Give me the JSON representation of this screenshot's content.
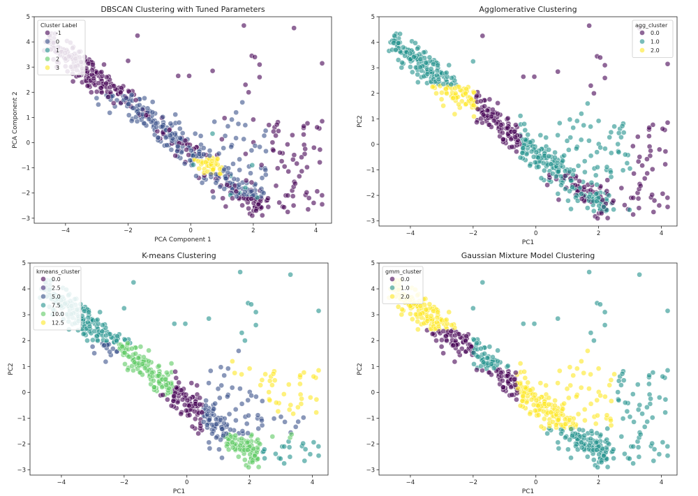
{
  "chart_data": [
    {
      "type": "scatter",
      "title": "DBSCAN Clustering with Tuned Parameters",
      "xlabel": "PCA Component 1",
      "ylabel": "PCA Component 2",
      "xlim": [
        -5,
        4.5
      ],
      "ylim": [
        -3.2,
        5
      ],
      "xticks": [
        -4,
        -2,
        0,
        2,
        4
      ],
      "yticks": [
        -3,
        -2,
        -1,
        0,
        1,
        2,
        3,
        4,
        5
      ],
      "legend": {
        "title": "Cluster Label",
        "position": "upper-left",
        "entries": [
          {
            "label": "-1",
            "color": "#440154"
          },
          {
            "label": "0",
            "color": "#3b528b"
          },
          {
            "label": "1",
            "color": "#21918c"
          },
          {
            "label": "2",
            "color": "#5ec962"
          },
          {
            "label": "3",
            "color": "#fde725"
          }
        ]
      },
      "scheme": "dbscan"
    },
    {
      "type": "scatter",
      "title": "Agglomerative Clustering",
      "xlabel": "PC1",
      "ylabel": "PC2",
      "xlim": [
        -5,
        4.5
      ],
      "ylim": [
        -3.2,
        5
      ],
      "xticks": [
        -4,
        -2,
        0,
        2,
        4
      ],
      "yticks": [
        -3,
        -2,
        -1,
        0,
        1,
        2,
        3,
        4,
        5
      ],
      "legend": {
        "title": "agg_cluster",
        "position": "upper-right",
        "entries": [
          {
            "label": "0.0",
            "color": "#440154"
          },
          {
            "label": "1.0",
            "color": "#21918c"
          },
          {
            "label": "2.0",
            "color": "#fde725"
          }
        ]
      },
      "scheme": "agg"
    },
    {
      "type": "scatter",
      "title": "K-means Clustering",
      "xlabel": "PC1",
      "ylabel": "PC2",
      "xlim": [
        -5,
        4.5
      ],
      "ylim": [
        -3.2,
        5
      ],
      "xticks": [
        -4,
        -2,
        0,
        2,
        4
      ],
      "yticks": [
        -3,
        -2,
        -1,
        0,
        1,
        2,
        3,
        4,
        5
      ],
      "legend": {
        "title": "kmeans_cluster",
        "position": "upper-left",
        "entries": [
          {
            "label": "0.0",
            "color": "#440154"
          },
          {
            "label": "2.5",
            "color": "#472d7b"
          },
          {
            "label": "5.0",
            "color": "#3b528b"
          },
          {
            "label": "7.5",
            "color": "#21918c"
          },
          {
            "label": "10.0",
            "color": "#5ec962"
          },
          {
            "label": "12.5",
            "color": "#fde725"
          }
        ]
      },
      "scheme": "kmeans"
    },
    {
      "type": "scatter",
      "title": "Gaussian Mixture Model Clustering",
      "xlabel": "PC1",
      "ylabel": "PC2",
      "xlim": [
        -5,
        4.5
      ],
      "ylim": [
        -3.2,
        5
      ],
      "xticks": [
        -4,
        -2,
        0,
        2,
        4
      ],
      "yticks": [
        -3,
        -2,
        -1,
        0,
        1,
        2,
        3,
        4,
        5
      ],
      "legend": {
        "title": "gmm_cluster",
        "position": "upper-left",
        "entries": [
          {
            "label": "0.0",
            "color": "#440154"
          },
          {
            "label": "1.0",
            "color": "#21918c"
          },
          {
            "label": "2.0",
            "color": "#fde725"
          }
        ]
      },
      "scheme": "gmm"
    }
  ]
}
